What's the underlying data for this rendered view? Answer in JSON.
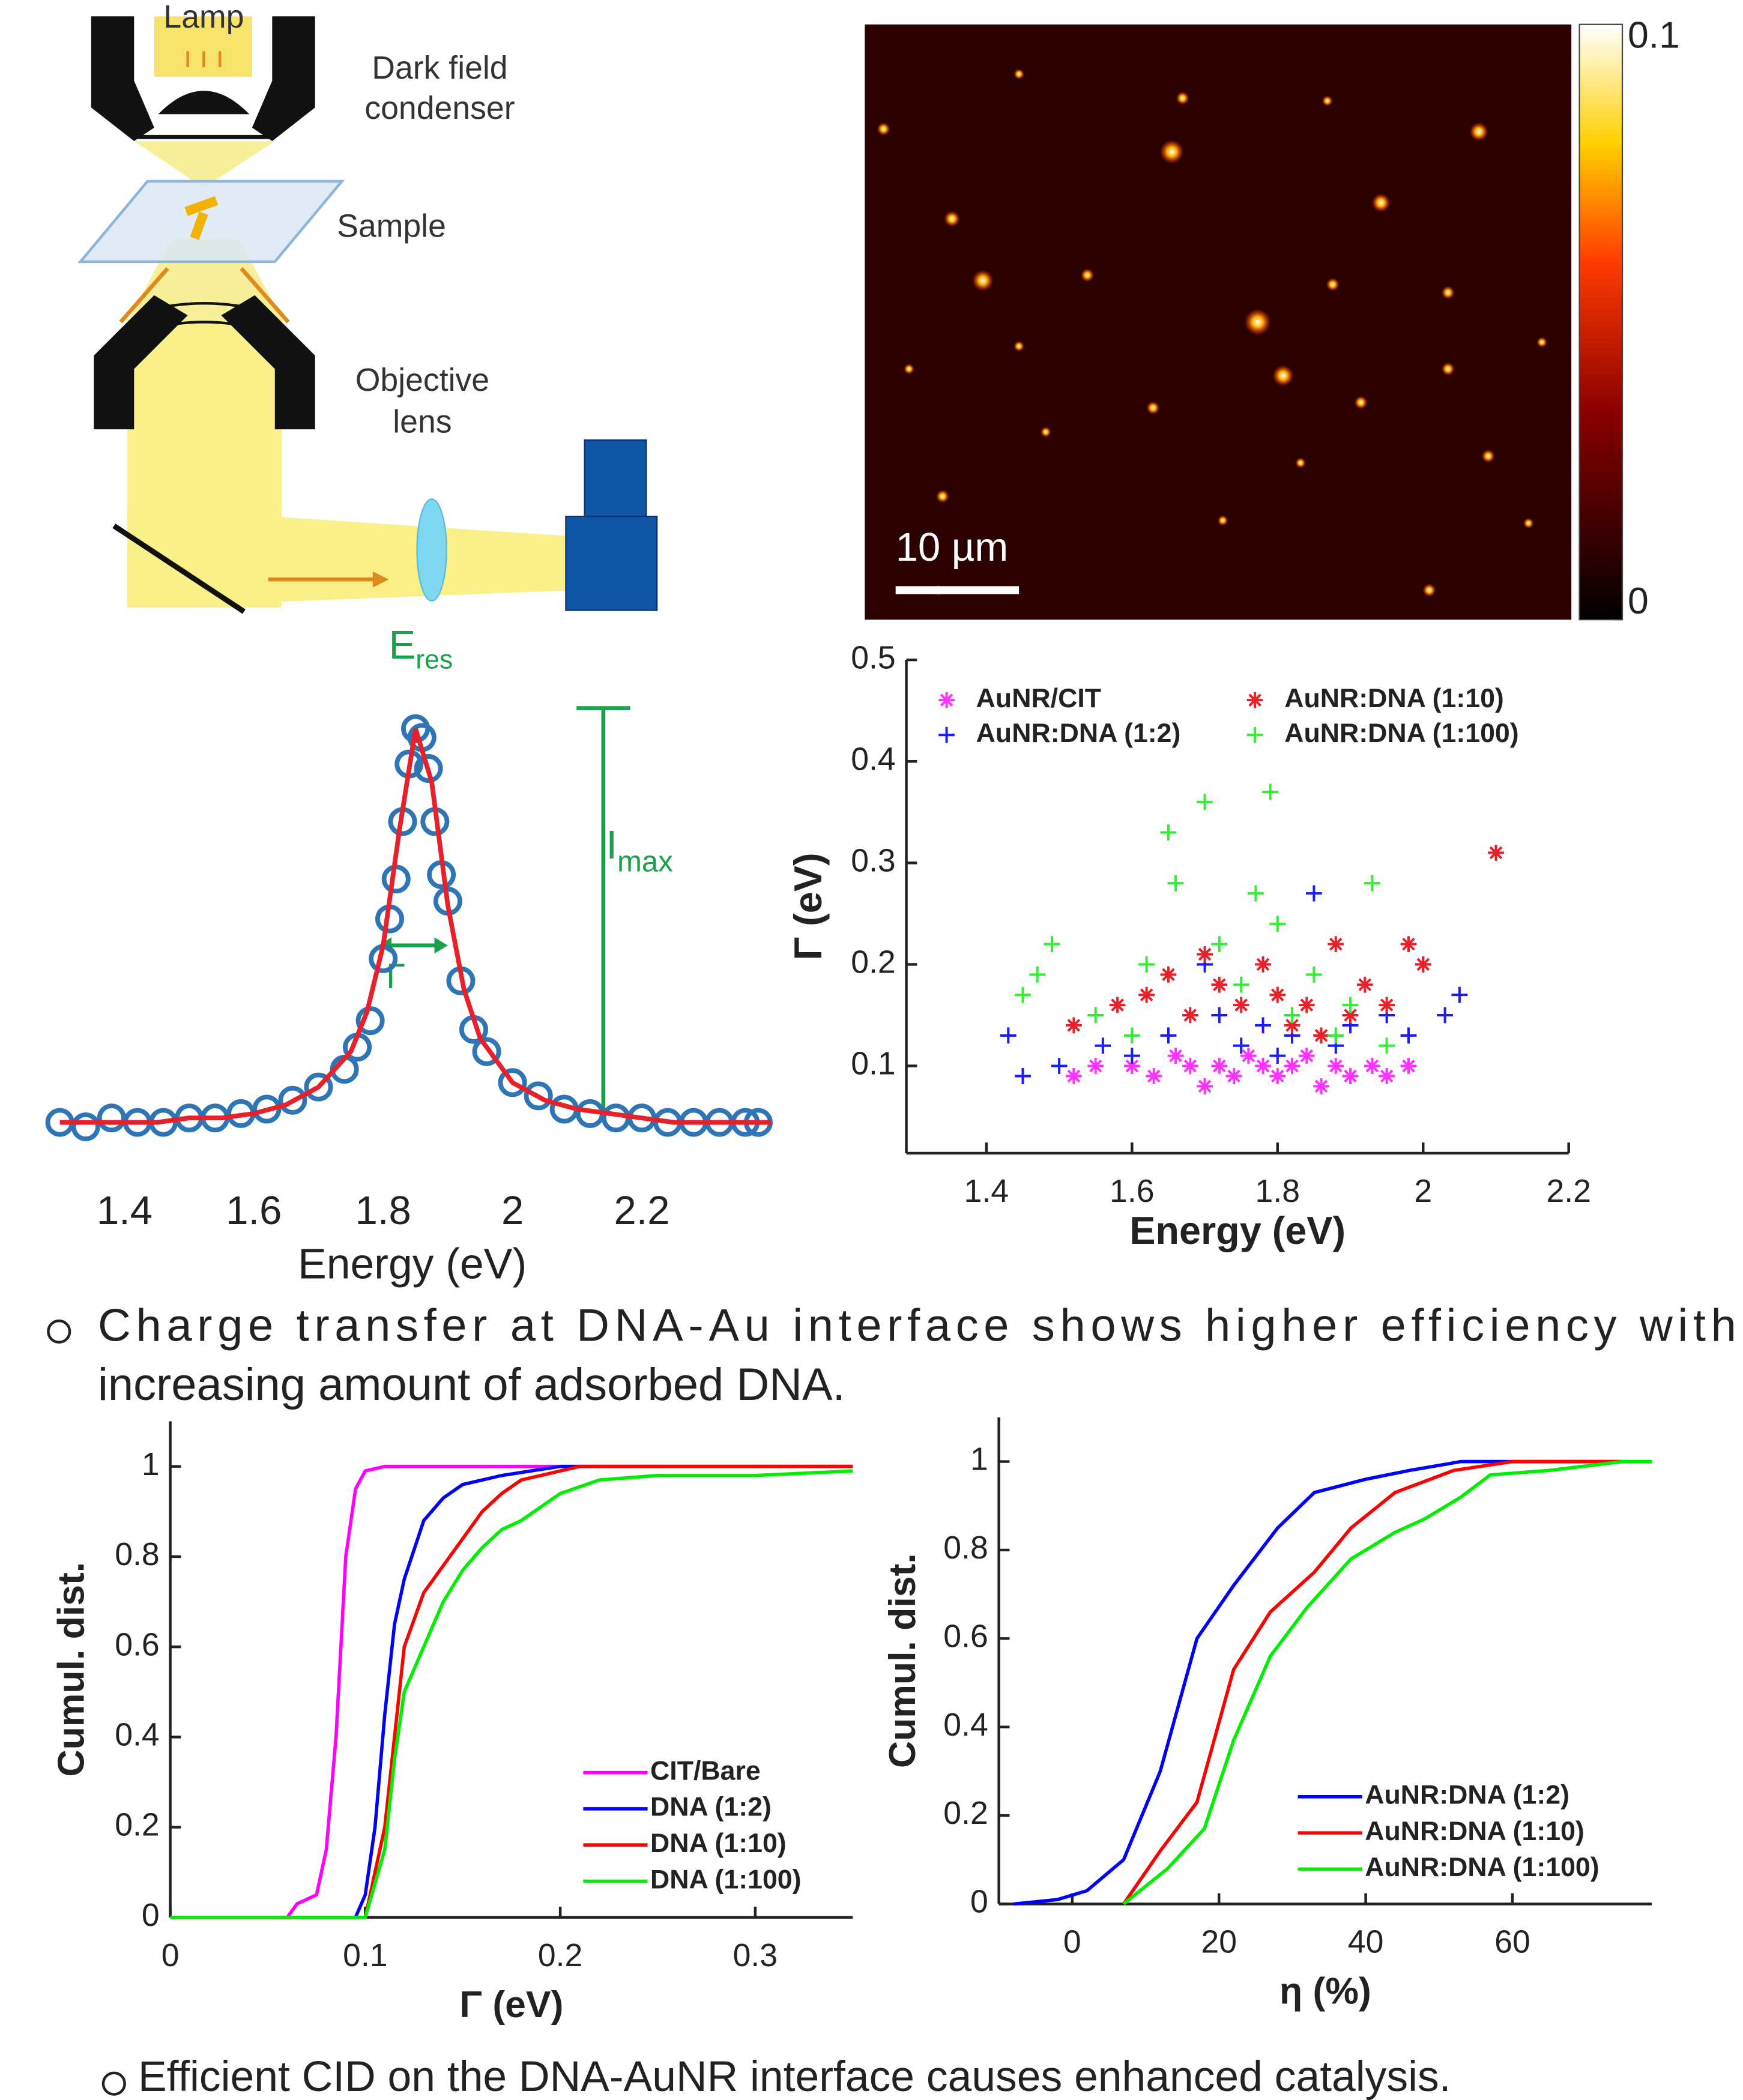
{
  "diagram": {
    "lamp": "Lamp",
    "condenser": [
      "Dark field",
      "condenser"
    ],
    "sample": "Sample",
    "objective": [
      "Objective",
      "lens"
    ]
  },
  "image": {
    "scale_bar": "10 µm",
    "clim": [
      0,
      0.1
    ],
    "colorbar_ticks": [
      0,
      0.1
    ]
  },
  "chart_data": [
    {
      "type": "scatter",
      "xlabel": "Energy (eV)",
      "annotations": [
        {
          "text": "E",
          "sub": "res"
        },
        {
          "text": "I",
          "sub": "max"
        },
        {
          "text": "Γ"
        }
      ],
      "xlim": [
        1.28,
        2.41
      ],
      "xticks": [
        1.4,
        1.6,
        1.8,
        2,
        2.2
      ],
      "ylim": [
        0,
        1
      ],
      "series": [
        {
          "mode": "markers",
          "marker": "o",
          "color": "#2e75b6",
          "x": [
            1.3,
            1.34,
            1.38,
            1.42,
            1.46,
            1.5,
            1.54,
            1.58,
            1.62,
            1.66,
            1.7,
            1.74,
            1.76,
            1.78,
            1.8,
            1.81,
            1.82,
            1.83,
            1.84,
            1.85,
            1.86,
            1.87,
            1.88,
            1.89,
            1.9,
            1.92,
            1.94,
            1.96,
            2.0,
            2.04,
            2.08,
            2.12,
            2.16,
            2.2,
            2.24,
            2.28,
            2.32,
            2.36,
            2.38
          ],
          "values": [
            0.1,
            0.09,
            0.11,
            0.1,
            0.1,
            0.11,
            0.11,
            0.12,
            0.13,
            0.15,
            0.18,
            0.22,
            0.27,
            0.33,
            0.47,
            0.56,
            0.65,
            0.78,
            0.91,
            0.99,
            0.97,
            0.9,
            0.78,
            0.66,
            0.6,
            0.42,
            0.31,
            0.26,
            0.19,
            0.16,
            0.13,
            0.12,
            0.11,
            0.11,
            0.1,
            0.1,
            0.1,
            0.1,
            0.1
          ]
        },
        {
          "mode": "line",
          "color": "#e8202a",
          "x": [
            1.3,
            1.35,
            1.4,
            1.45,
            1.5,
            1.55,
            1.6,
            1.65,
            1.7,
            1.75,
            1.775,
            1.8,
            1.825,
            1.85,
            1.875,
            1.9,
            1.925,
            1.95,
            2.0,
            2.05,
            2.1,
            2.15,
            2.2,
            2.25,
            2.3,
            2.35,
            2.4
          ],
          "values": [
            0.1,
            0.1,
            0.1,
            0.1,
            0.11,
            0.11,
            0.12,
            0.14,
            0.18,
            0.26,
            0.35,
            0.5,
            0.76,
            0.99,
            0.87,
            0.59,
            0.4,
            0.29,
            0.19,
            0.15,
            0.13,
            0.12,
            0.11,
            0.1,
            0.1,
            0.1,
            0.1
          ]
        }
      ]
    },
    {
      "type": "scatter",
      "xlabel": "Energy (eV)",
      "ylabel": "Γ (eV)",
      "xlim": [
        1.29,
        2.2
      ],
      "xticks": [
        1.4,
        1.6,
        1.8,
        2,
        2.2
      ],
      "ylim": [
        0.014,
        0.5
      ],
      "yticks": [
        0.1,
        0.2,
        0.3,
        0.4,
        0.5
      ],
      "series": [
        {
          "name": "AuNR/CIT",
          "marker": "*",
          "color": "#ff33ff",
          "x": [
            1.52,
            1.55,
            1.6,
            1.63,
            1.66,
            1.68,
            1.7,
            1.72,
            1.74,
            1.76,
            1.78,
            1.8,
            1.82,
            1.84,
            1.86,
            1.88,
            1.9,
            1.93,
            1.95,
            1.98
          ],
          "values": [
            0.09,
            0.1,
            0.1,
            0.09,
            0.11,
            0.1,
            0.08,
            0.1,
            0.09,
            0.11,
            0.1,
            0.09,
            0.1,
            0.11,
            0.08,
            0.1,
            0.09,
            0.1,
            0.09,
            0.1
          ]
        },
        {
          "name": "AuNR:DNA (1:2)",
          "marker": "+",
          "color": "#1a1aff",
          "x": [
            1.43,
            1.45,
            1.5,
            1.56,
            1.6,
            1.65,
            1.7,
            1.72,
            1.75,
            1.78,
            1.8,
            1.82,
            1.85,
            1.88,
            1.9,
            1.95,
            1.98,
            2.0,
            2.03,
            2.05
          ],
          "values": [
            0.13,
            0.09,
            0.1,
            0.12,
            0.11,
            0.13,
            0.2,
            0.15,
            0.12,
            0.14,
            0.11,
            0.13,
            0.27,
            0.12,
            0.14,
            0.15,
            0.13,
            0.2,
            0.15,
            0.17
          ]
        },
        {
          "name": "AuNR:DNA (1:10)",
          "marker": "*",
          "color": "#e8202a",
          "x": [
            1.52,
            1.58,
            1.62,
            1.65,
            1.68,
            1.7,
            1.72,
            1.75,
            1.78,
            1.8,
            1.82,
            1.84,
            1.86,
            1.88,
            1.9,
            1.92,
            1.95,
            1.98,
            2.0,
            2.1
          ],
          "values": [
            0.14,
            0.16,
            0.17,
            0.19,
            0.15,
            0.21,
            0.18,
            0.16,
            0.2,
            0.17,
            0.14,
            0.16,
            0.13,
            0.22,
            0.15,
            0.18,
            0.16,
            0.22,
            0.2,
            0.31
          ]
        },
        {
          "name": "AuNR:DNA (1:100)",
          "marker": "+",
          "color": "#33ee33",
          "x": [
            1.45,
            1.47,
            1.49,
            1.55,
            1.6,
            1.62,
            1.65,
            1.66,
            1.7,
            1.72,
            1.75,
            1.77,
            1.79,
            1.8,
            1.82,
            1.85,
            1.88,
            1.9,
            1.93,
            1.95
          ],
          "values": [
            0.17,
            0.19,
            0.22,
            0.15,
            0.13,
            0.2,
            0.33,
            0.28,
            0.36,
            0.22,
            0.18,
            0.27,
            0.37,
            0.24,
            0.15,
            0.19,
            0.13,
            0.16,
            0.28,
            0.12
          ]
        }
      ]
    },
    {
      "type": "line",
      "xlabel": "Γ (eV)",
      "ylabel": "Cumul. dist.",
      "xlim": [
        0,
        0.35
      ],
      "xticks": [
        0,
        0.1,
        0.2,
        0.3
      ],
      "ylim": [
        0,
        1.1
      ],
      "yticks": [
        0,
        0.2,
        0.4,
        0.6,
        0.8,
        1
      ],
      "series": [
        {
          "name": "CIT/Bare",
          "color": "#ff00ff",
          "x": [
            0,
            0.06,
            0.065,
            0.075,
            0.08,
            0.085,
            0.09,
            0.095,
            0.1,
            0.11,
            0.35
          ],
          "values": [
            0,
            0,
            0.03,
            0.05,
            0.15,
            0.4,
            0.8,
            0.95,
            0.99,
            1,
            1
          ]
        },
        {
          "name": "DNA (1:2)",
          "color": "#0000ff",
          "x": [
            0,
            0.095,
            0.1,
            0.105,
            0.11,
            0.115,
            0.12,
            0.13,
            0.14,
            0.15,
            0.17,
            0.2,
            0.35
          ],
          "values": [
            0,
            0,
            0.05,
            0.2,
            0.45,
            0.65,
            0.75,
            0.88,
            0.93,
            0.96,
            0.98,
            1,
            1
          ]
        },
        {
          "name": "DNA (1:10)",
          "color": "#ff0000",
          "x": [
            0,
            0.1,
            0.11,
            0.115,
            0.12,
            0.125,
            0.13,
            0.14,
            0.15,
            0.16,
            0.17,
            0.18,
            0.2,
            0.21,
            0.35
          ],
          "values": [
            0,
            0,
            0.2,
            0.4,
            0.6,
            0.66,
            0.72,
            0.78,
            0.84,
            0.9,
            0.94,
            0.97,
            0.99,
            1,
            1
          ]
        },
        {
          "name": "DNA (1:100)",
          "color": "#00ee00",
          "x": [
            0,
            0.1,
            0.11,
            0.115,
            0.12,
            0.13,
            0.14,
            0.15,
            0.16,
            0.17,
            0.18,
            0.2,
            0.22,
            0.25,
            0.3,
            0.35
          ],
          "values": [
            0,
            0,
            0.15,
            0.35,
            0.5,
            0.6,
            0.7,
            0.77,
            0.82,
            0.86,
            0.88,
            0.94,
            0.97,
            0.98,
            0.98,
            0.99
          ]
        }
      ]
    },
    {
      "type": "line",
      "xlabel": "η (%)",
      "ylabel": "Cumul. dist.",
      "xlim": [
        -10,
        79
      ],
      "xticks": [
        0,
        20,
        40,
        60
      ],
      "ylim": [
        0,
        1.1
      ],
      "yticks": [
        0,
        0.2,
        0.4,
        0.6,
        0.8,
        1
      ],
      "series": [
        {
          "name": "AuNR:DNA (1:2)",
          "color": "#0000ff",
          "x": [
            -8,
            -2,
            2,
            7,
            12,
            17,
            22,
            28,
            33,
            40,
            46,
            53,
            60,
            75
          ],
          "values": [
            0,
            0.01,
            0.03,
            0.1,
            0.3,
            0.6,
            0.72,
            0.85,
            0.93,
            0.96,
            0.98,
            1,
            1,
            1
          ]
        },
        {
          "name": "AuNR:DNA (1:10)",
          "color": "#ff0000",
          "x": [
            7,
            12,
            17,
            22,
            27,
            33,
            38,
            44,
            52,
            60,
            75
          ],
          "values": [
            0,
            0.12,
            0.23,
            0.53,
            0.66,
            0.75,
            0.85,
            0.93,
            0.98,
            1,
            1
          ]
        },
        {
          "name": "AuNR:DNA (1:100)",
          "color": "#00ee00",
          "x": [
            7,
            13,
            18,
            22,
            27,
            32,
            38,
            44,
            48,
            53,
            57,
            65,
            75,
            79
          ],
          "values": [
            0,
            0.08,
            0.17,
            0.37,
            0.56,
            0.67,
            0.78,
            0.84,
            0.87,
            0.92,
            0.97,
            0.98,
            1,
            1
          ]
        }
      ]
    }
  ],
  "bullets": [
    {
      "lines": [
        "Charge transfer at DNA-Au interface shows higher efficiency with",
        "increasing amount of adsorbed DNA."
      ]
    },
    {
      "lines": [
        "Efficient CID on the DNA-AuNR interface causes enhanced catalysis."
      ]
    }
  ]
}
